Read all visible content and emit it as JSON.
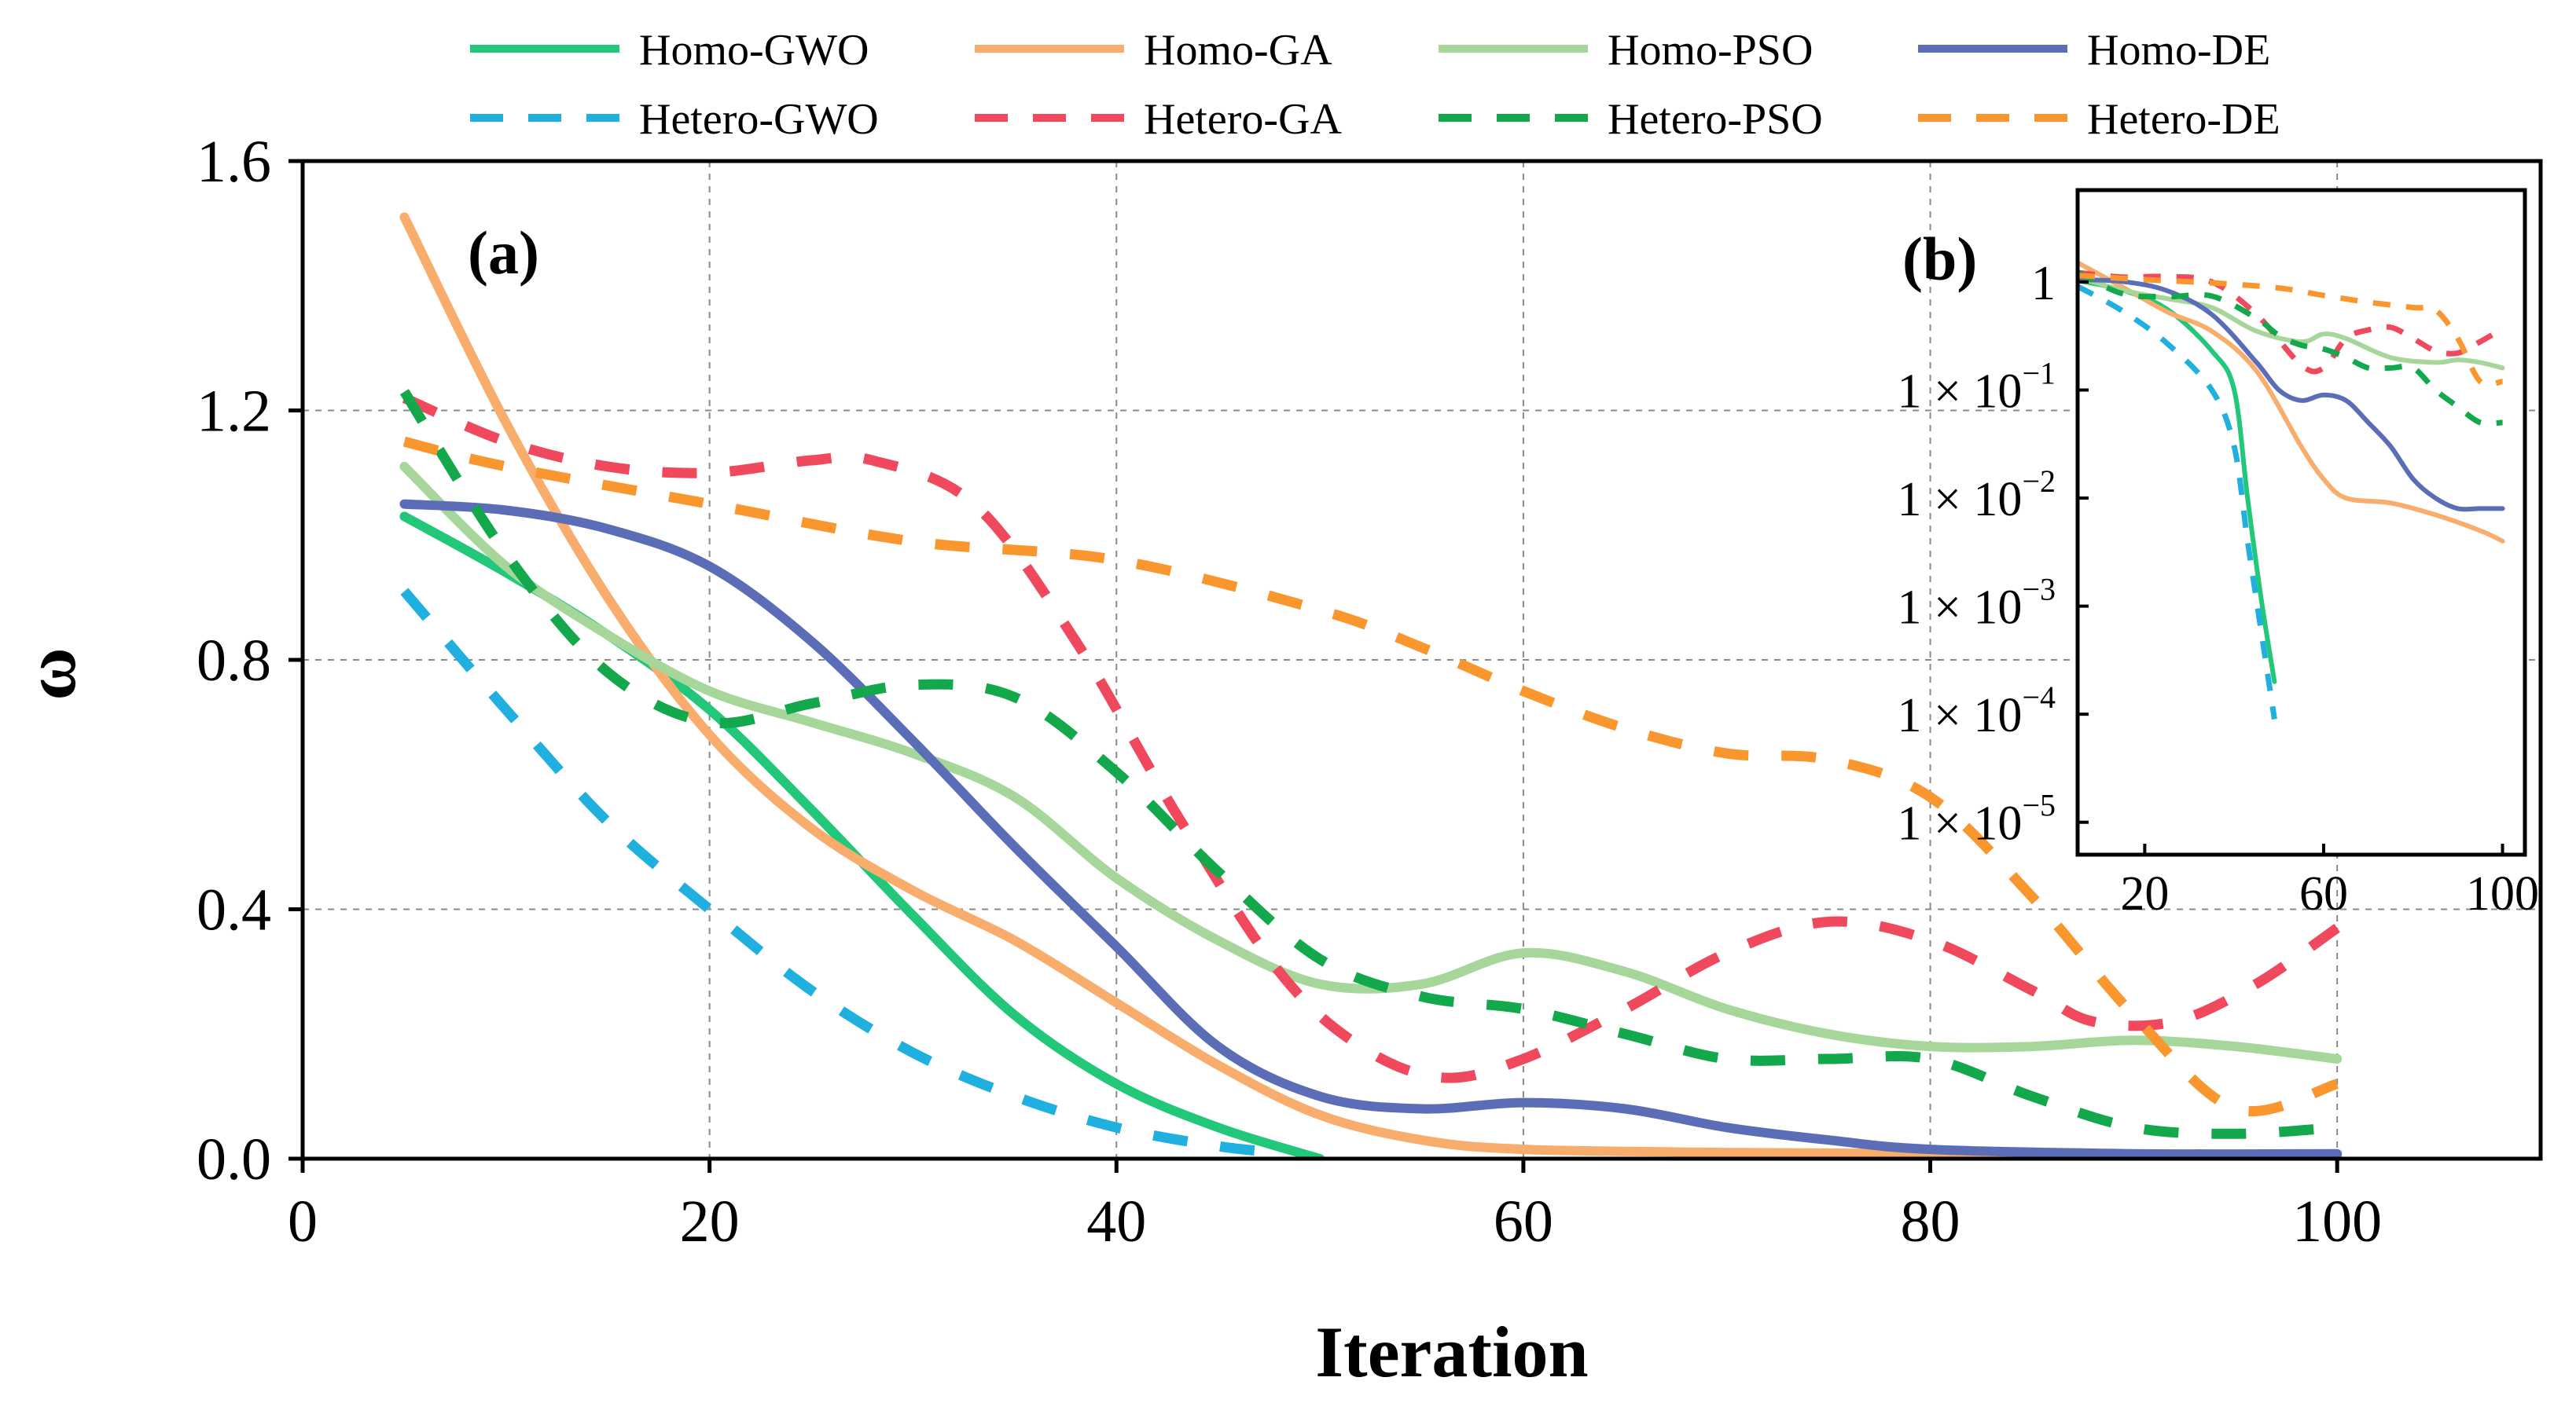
{
  "chart_data": [
    {
      "panel": "(a)",
      "type": "line",
      "xlabel": "Iteration",
      "ylabel": "ω",
      "xlim": [
        0,
        110
      ],
      "ylim": [
        0,
        1.6
      ],
      "xticks": [
        0,
        20,
        40,
        60,
        80,
        100
      ],
      "yticks": [
        0.0,
        0.4,
        0.8,
        1.2,
        1.6
      ],
      "xtick_labels": [
        "0",
        "20",
        "40",
        "60",
        "80",
        "100"
      ],
      "ytick_labels": [
        "0.0",
        "0.4",
        "0.8",
        "1.2",
        "1.6"
      ],
      "grid": true,
      "legend": "top, two rows of four entries",
      "series": [
        {
          "name": "Homo-GWO",
          "color": "#22c77a",
          "style": "solid",
          "x": [
            5,
            10,
            15,
            20,
            25,
            30,
            35,
            40,
            45,
            50
          ],
          "y": [
            1.03,
            0.94,
            0.84,
            0.72,
            0.56,
            0.39,
            0.23,
            0.12,
            0.05,
            0.0
          ]
        },
        {
          "name": "Homo-GA",
          "color": "#f9ad6d",
          "style": "solid",
          "x": [
            5,
            10,
            15,
            20,
            25,
            30,
            35,
            40,
            45,
            50,
            55,
            60,
            70,
            80,
            90,
            100
          ],
          "y": [
            1.51,
            1.18,
            0.9,
            0.68,
            0.53,
            0.43,
            0.35,
            0.25,
            0.15,
            0.07,
            0.03,
            0.015,
            0.01,
            0.008,
            0.005,
            0.004
          ]
        },
        {
          "name": "Homo-PSO",
          "color": "#a6d69a",
          "style": "solid",
          "x": [
            5,
            10,
            15,
            20,
            25,
            30,
            35,
            40,
            45,
            50,
            55,
            60,
            65,
            70,
            75,
            80,
            85,
            90,
            95,
            100
          ],
          "y": [
            1.11,
            0.95,
            0.84,
            0.75,
            0.7,
            0.65,
            0.58,
            0.45,
            0.35,
            0.28,
            0.28,
            0.33,
            0.3,
            0.24,
            0.2,
            0.18,
            0.18,
            0.19,
            0.18,
            0.16
          ]
        },
        {
          "name": "Homo-DE",
          "color": "#5b6db6",
          "style": "solid",
          "x": [
            5,
            10,
            15,
            20,
            25,
            30,
            35,
            40,
            45,
            50,
            55,
            60,
            65,
            70,
            75,
            80,
            90,
            100
          ],
          "y": [
            1.05,
            1.04,
            1.01,
            0.95,
            0.83,
            0.67,
            0.5,
            0.34,
            0.18,
            0.1,
            0.08,
            0.09,
            0.08,
            0.05,
            0.03,
            0.015,
            0.008,
            0.008
          ]
        },
        {
          "name": "Hetero-GWO",
          "color": "#1fb0e0",
          "style": "dashed",
          "x": [
            5,
            10,
            15,
            20,
            25,
            30,
            35,
            40,
            45,
            48
          ],
          "y": [
            0.91,
            0.72,
            0.54,
            0.4,
            0.27,
            0.17,
            0.1,
            0.05,
            0.02,
            0.01
          ]
        },
        {
          "name": "Hetero-GA",
          "color": "#f0485c",
          "style": "dashed",
          "x": [
            5,
            10,
            15,
            20,
            25,
            28,
            33,
            38,
            43,
            48,
            52,
            56,
            60,
            65,
            70,
            75,
            80,
            85,
            88,
            92,
            96,
            100
          ],
          "y": [
            1.22,
            1.15,
            1.11,
            1.1,
            1.12,
            1.12,
            1.05,
            0.83,
            0.55,
            0.3,
            0.18,
            0.13,
            0.16,
            0.24,
            0.33,
            0.38,
            0.35,
            0.27,
            0.22,
            0.22,
            0.28,
            0.37
          ]
        },
        {
          "name": "Hetero-PSO",
          "color": "#12a84b",
          "style": "dashed",
          "x": [
            5,
            10,
            15,
            20,
            25,
            30,
            35,
            40,
            45,
            50,
            55,
            60,
            65,
            70,
            75,
            80,
            85,
            90,
            95,
            100
          ],
          "y": [
            1.23,
            0.97,
            0.78,
            0.7,
            0.73,
            0.76,
            0.74,
            0.62,
            0.46,
            0.32,
            0.26,
            0.24,
            0.2,
            0.16,
            0.16,
            0.16,
            0.1,
            0.05,
            0.04,
            0.05
          ]
        },
        {
          "name": "Hetero-DE",
          "color": "#f9962e",
          "style": "dashed",
          "x": [
            5,
            10,
            20,
            30,
            40,
            50,
            55,
            60,
            65,
            70,
            75,
            80,
            85,
            90,
            95,
            100
          ],
          "y": [
            1.15,
            1.11,
            1.05,
            0.99,
            0.96,
            0.88,
            0.82,
            0.75,
            0.69,
            0.65,
            0.64,
            0.58,
            0.42,
            0.23,
            0.08,
            0.12
          ]
        }
      ]
    },
    {
      "panel": "(b)",
      "type": "line",
      "yscale": "log",
      "xlim": [
        5,
        105
      ],
      "ylim": [
        1e-05,
        10
      ],
      "xticks": [
        20,
        60,
        100
      ],
      "xtick_labels": [
        "20",
        "60",
        "100"
      ],
      "ytick_labels": [
        {
          "mantissa": "1",
          "exp": ""
        },
        {
          "mantissa": "1 × 10",
          "exp": "−1"
        },
        {
          "mantissa": "1 × 10",
          "exp": "−2"
        },
        {
          "mantissa": "1 × 10",
          "exp": "−3"
        },
        {
          "mantissa": "1 × 10",
          "exp": "−4"
        },
        {
          "mantissa": "1 × 10",
          "exp": "−5"
        }
      ],
      "yticks": [
        1,
        0.1,
        0.01,
        0.001,
        0.0001,
        1e-05
      ],
      "series_ref": "same series as panel (a), plotted on log scale",
      "series": [
        {
          "name": "Homo-GWO",
          "x": [
            5,
            15,
            25,
            35,
            40,
            43,
            46,
            49
          ],
          "y": [
            1.03,
            0.84,
            0.56,
            0.23,
            0.1,
            0.01,
            0.0012,
            0.0002
          ]
        },
        {
          "name": "Homo-GA",
          "x": [
            5,
            15,
            25,
            35,
            45,
            55,
            60,
            65,
            75,
            85,
            95,
            100
          ],
          "y": [
            1.51,
            0.9,
            0.53,
            0.35,
            0.15,
            0.03,
            0.015,
            0.01,
            0.009,
            0.007,
            0.005,
            0.004
          ]
        },
        {
          "name": "Homo-PSO",
          "x": [
            5,
            15,
            25,
            35,
            45,
            55,
            60,
            65,
            75,
            85,
            90,
            95,
            100
          ],
          "y": [
            1.11,
            0.84,
            0.7,
            0.58,
            0.35,
            0.28,
            0.33,
            0.3,
            0.2,
            0.18,
            0.19,
            0.18,
            0.16
          ]
        },
        {
          "name": "Homo-DE",
          "x": [
            5,
            15,
            25,
            35,
            45,
            50,
            55,
            60,
            65,
            70,
            75,
            80,
            85,
            90,
            95,
            100
          ],
          "y": [
            1.05,
            1.01,
            0.83,
            0.5,
            0.18,
            0.1,
            0.08,
            0.09,
            0.08,
            0.05,
            0.03,
            0.015,
            0.01,
            0.008,
            0.008,
            0.008
          ]
        },
        {
          "name": "Hetero-GWO",
          "x": [
            5,
            15,
            25,
            35,
            40,
            43,
            46,
            49
          ],
          "y": [
            0.91,
            0.54,
            0.27,
            0.1,
            0.03,
            0.004,
            0.0006,
            9e-05
          ]
        },
        {
          "name": "Hetero-GA",
          "x": [
            5,
            15,
            25,
            35,
            45,
            55,
            60,
            65,
            70,
            75,
            80,
            85,
            90,
            95,
            100
          ],
          "y": [
            1.22,
            1.11,
            1.12,
            1.0,
            0.5,
            0.17,
            0.16,
            0.3,
            0.36,
            0.38,
            0.3,
            0.23,
            0.22,
            0.28,
            0.37
          ]
        },
        {
          "name": "Hetero-PSO",
          "x": [
            5,
            15,
            25,
            35,
            45,
            50,
            55,
            60,
            65,
            70,
            75,
            80,
            85,
            90,
            95,
            100
          ],
          "y": [
            1.23,
            0.78,
            0.73,
            0.74,
            0.46,
            0.32,
            0.26,
            0.24,
            0.2,
            0.16,
            0.16,
            0.16,
            0.1,
            0.07,
            0.05,
            0.05
          ]
        },
        {
          "name": "Hetero-DE",
          "x": [
            5,
            20,
            35,
            50,
            60,
            70,
            80,
            85,
            90,
            95,
            100
          ],
          "y": [
            1.15,
            1.05,
            0.98,
            0.88,
            0.75,
            0.65,
            0.58,
            0.55,
            0.3,
            0.12,
            0.12
          ]
        }
      ]
    }
  ]
}
